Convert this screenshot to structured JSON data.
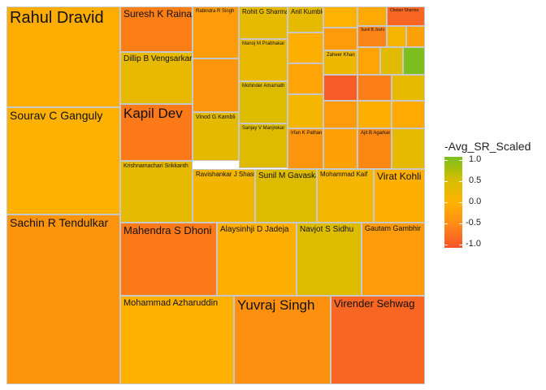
{
  "chart_data": {
    "type": "treemap",
    "title": "",
    "legend": {
      "title": "-Avg_SR_Scaled",
      "placement": "right",
      "range": [
        -1.0,
        1.0
      ],
      "ticks": [
        "1.0",
        "0.5",
        "0.0",
        "-0.5",
        "-1.0"
      ],
      "colors": {
        "low": "#f8522a",
        "mid": "#ffb300",
        "high": "#7cbf1f"
      }
    },
    "tiles": [
      {
        "label": "Rahul Dravid",
        "value": -0.06
      },
      {
        "label": "Sourav C Ganguly",
        "value": -0.02
      },
      {
        "label": "Sachin R Tendulkar",
        "value": -0.32
      },
      {
        "label": "Suresh K Raina",
        "value": -0.55
      },
      {
        "label": "Rabindra R Singh",
        "value": -0.25
      },
      {
        "label": "Rohit G Sharma",
        "value": 0.3
      },
      {
        "label": "Anil Kumble",
        "value": 0.3
      },
      {
        "label": "Dillip B Vengsarkar",
        "value": 0.28
      },
      {
        "label": "Kapil Dev",
        "value": -0.6
      },
      {
        "label": "Vinod G Kambli",
        "value": 0.32
      },
      {
        "label": "Manoj M Prabhakar",
        "value": 0.26
      },
      {
        "label": "Mohinder Amarnath",
        "value": 0.4
      },
      {
        "label": "Sanjay V Manjrekar",
        "value": 0.38
      },
      {
        "label": "Irfan K Pathan",
        "value": -0.3
      },
      {
        "label": "Ajit B Agarkar",
        "value": -0.45
      },
      {
        "label": "Zaheer Khan",
        "value": 0.2
      },
      {
        "label": "Sunil B Joshi",
        "value": -0.5
      },
      {
        "label": "Chetan Sharma",
        "value": -0.8
      },
      {
        "label": "Krishnamachari Srikkanth",
        "value": 0.3
      },
      {
        "label": "Ravishankar J Shastri",
        "value": 0.15
      },
      {
        "label": "Sunil M Gavaskar",
        "value": 0.4
      },
      {
        "label": "Mohammad Kaif",
        "value": 0.12
      },
      {
        "label": "Virat Kohli",
        "value": -0.05
      },
      {
        "label": "Mahendra S Dhoni",
        "value": -0.6
      },
      {
        "label": "Alaysinhji D Jadeja",
        "value": -0.05
      },
      {
        "label": "Navjot S Sidhu",
        "value": 0.4
      },
      {
        "label": "Gautam Gambhir",
        "value": -0.25
      },
      {
        "label": "Mohammad Azharuddin",
        "value": -0.02
      },
      {
        "label": "Yuvraj Singh",
        "value": -0.35
      },
      {
        "label": "Virender Sehwag",
        "value": -0.8
      },
      {
        "label": "",
        "value": -0.3
      },
      {
        "label": "",
        "value": -0.05
      },
      {
        "label": "",
        "value": -0.15
      },
      {
        "label": "",
        "value": 0.12
      },
      {
        "label": "",
        "value": 0.0
      },
      {
        "label": "",
        "value": -0.1
      },
      {
        "label": "",
        "value": -0.25
      },
      {
        "label": "",
        "value": 0.1
      },
      {
        "label": "",
        "value": -0.2
      },
      {
        "label": "",
        "value": 0.0
      },
      {
        "label": "",
        "value": -0.15
      },
      {
        "label": "",
        "value": 0.35
      },
      {
        "label": "",
        "value": 0.45
      },
      {
        "label": "",
        "value": 1.0
      },
      {
        "label": "",
        "value": -0.9
      },
      {
        "label": "",
        "value": -0.55
      },
      {
        "label": "",
        "value": 0.3
      },
      {
        "label": "",
        "value": -0.25
      },
      {
        "label": "",
        "value": -0.05
      },
      {
        "label": "",
        "value": -0.1
      },
      {
        "label": "",
        "value": -0.2
      },
      {
        "label": "",
        "value": 0.3
      },
      {
        "label": "",
        "value": -0.3
      },
      {
        "label": "",
        "value": -0.25
      },
      {
        "label": "",
        "value": -0.15
      },
      {
        "label": "",
        "value": 0.1
      },
      {
        "label": "",
        "value": -0.1
      },
      {
        "label": "",
        "value": 0.05
      },
      {
        "label": "",
        "value": 0.2
      },
      {
        "label": "",
        "value": 0.25
      },
      {
        "label": "",
        "value": -0.2
      }
    ]
  }
}
